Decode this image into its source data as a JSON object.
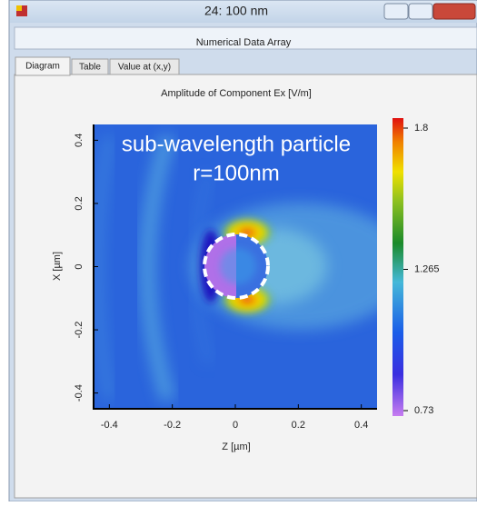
{
  "window": {
    "title": "24: 100 nm",
    "subtitle": "Numerical Data Array",
    "tabs": [
      "Diagram",
      "Table",
      "Value at (x,y)"
    ]
  },
  "chart_data": {
    "type": "heatmap",
    "title": "Amplitude of Component Ex  [V/m]",
    "x_label": "Z [µm]",
    "y_label": "X [µm]",
    "xlim": [
      -0.45,
      0.45
    ],
    "xticks": [
      -0.4,
      -0.2,
      0,
      0.2,
      0.4
    ],
    "ylim": [
      -0.45,
      0.45
    ],
    "yticks": [
      -0.4,
      -0.2,
      0,
      0.2,
      0.4
    ],
    "colorbar": {
      "lim": [
        0.73,
        1.8
      ],
      "ticks": [
        0.73,
        1.265,
        1.8
      ]
    },
    "annotations": [
      "sub-wavelength particle",
      "r=100nm"
    ]
  }
}
